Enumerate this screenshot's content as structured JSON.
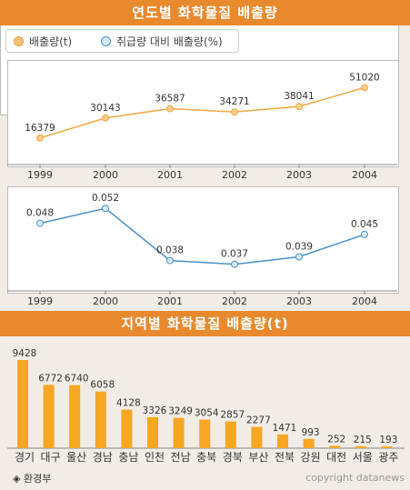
{
  "title1": "연도별 화학물질 배출량",
  "title2": "지역별 화학물질 배출량(t)",
  "legend": {
    "item1": "배출량(t)",
    "item2": "취급량 대비 배출량(%)"
  },
  "colors": {
    "orange": "#f5b65a",
    "blue": "#4a90c8",
    "banner": "#e8892e",
    "bar": "#f5a623"
  },
  "chart_data": [
    {
      "type": "line",
      "title": "연도별 화학물질 배출량",
      "x": [
        "1999",
        "2000",
        "2001",
        "2002",
        "2003",
        "2004"
      ],
      "series": [
        {
          "name": "배출량(t)",
          "values": [
            16379,
            30143,
            36587,
            34271,
            38041,
            51020
          ]
        }
      ],
      "ylim": [
        10000,
        55000
      ]
    },
    {
      "type": "line",
      "x": [
        "1999",
        "2000",
        "2001",
        "2002",
        "2003",
        "2004"
      ],
      "series": [
        {
          "name": "취급량 대비 배출량(%)",
          "values": [
            0.048,
            0.052,
            0.038,
            0.037,
            0.039,
            0.045
          ]
        }
      ],
      "ylim": [
        0.034,
        0.054
      ]
    },
    {
      "type": "bar",
      "title": "지역별 화학물질 배출량(t)",
      "categories": [
        "경기",
        "대구",
        "울산",
        "경남",
        "충남",
        "인천",
        "전남",
        "충북",
        "경북",
        "부산",
        "전북",
        "강원",
        "대전",
        "서울",
        "광주"
      ],
      "values": [
        9428,
        6772,
        6740,
        6058,
        4128,
        3326,
        3249,
        3054,
        2857,
        2277,
        1471,
        993,
        252,
        215,
        193
      ],
      "ylim": [
        0,
        10000
      ]
    }
  ],
  "footer": {
    "source": "◈ 환경부",
    "copyright": "copyright datanews"
  }
}
